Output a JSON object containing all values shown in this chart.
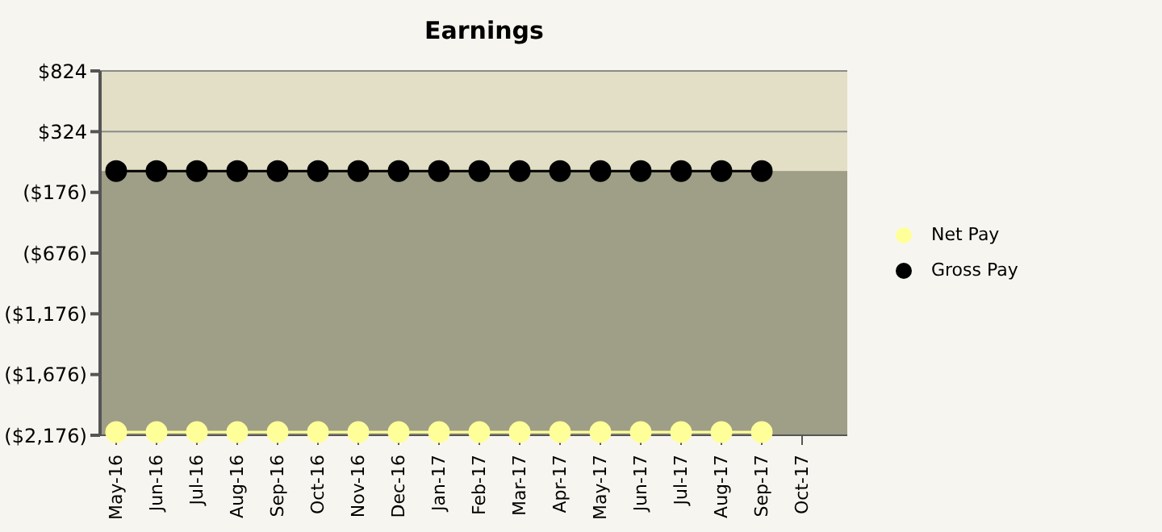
{
  "chart_data": {
    "type": "line",
    "title": "Earnings",
    "categories": [
      "May-16",
      "Jun-16",
      "Jul-16",
      "Aug-16",
      "Sep-16",
      "Oct-16",
      "Nov-16",
      "Dec-16",
      "Jan-17",
      "Feb-17",
      "Mar-17",
      "Apr-17",
      "May-17",
      "Jun-17",
      "Jul-17",
      "Aug-17",
      "Sep-17",
      "Oct-17"
    ],
    "series": [
      {
        "name": "Net Pay",
        "color": "#ffff99",
        "values": [
          -2150,
          -2150,
          -2150,
          -2150,
          -2150,
          -2150,
          -2150,
          -2150,
          -2150,
          -2150,
          -2150,
          -2150,
          -2150,
          -2150,
          -2150,
          -2150,
          -2150,
          null
        ]
      },
      {
        "name": "Gross Pay",
        "color": "#000000",
        "values": [
          0,
          0,
          0,
          0,
          0,
          0,
          0,
          0,
          0,
          0,
          0,
          0,
          0,
          0,
          0,
          0,
          0,
          null
        ]
      }
    ],
    "ylim": [
      -2176,
      824
    ],
    "yticks": [
      {
        "value": 824,
        "label": "$824"
      },
      {
        "value": 324,
        "label": "$324"
      },
      {
        "value": -176,
        "label": "($176)"
      },
      {
        "value": -676,
        "label": "($676)"
      },
      {
        "value": -1176,
        "label": "($1,176)"
      },
      {
        "value": -1676,
        "label": "($1,676)"
      },
      {
        "value": -2176,
        "label": "($2,176)"
      }
    ],
    "bands": [
      {
        "axis": "y",
        "from": -2176,
        "to": 0,
        "color": "#9f9e86"
      }
    ],
    "grid": "y",
    "legend": "right",
    "marker": "circle",
    "line_style": "solid"
  }
}
